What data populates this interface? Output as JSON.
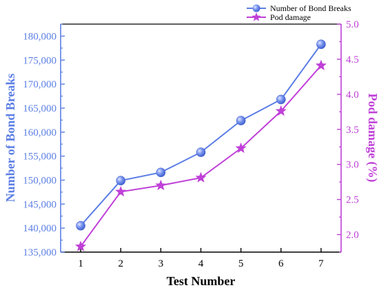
{
  "chart_data": {
    "type": "line",
    "title": "",
    "xlabel": "Test Number",
    "ylabel_left": "Number of Bond Breaks",
    "ylabel_right": "Pod damage (%)",
    "x": [
      1,
      2,
      3,
      4,
      5,
      6,
      7
    ],
    "x_ticks": [
      "1",
      "2",
      "3",
      "4",
      "5",
      "6",
      "7"
    ],
    "y_left_ticks": [
      "135,000",
      "140,000",
      "145,000",
      "150,000",
      "155,000",
      "160,000",
      "165,000",
      "170,000",
      "175,000",
      "180,000"
    ],
    "y_right_ticks": [
      "2.0",
      "2.5",
      "3.0",
      "3.5",
      "4.0",
      "4.5",
      "5.0"
    ],
    "ylim_left": [
      135000,
      182500
    ],
    "ylim_right": [
      1.75,
      5.0
    ],
    "legend_position": "top-right",
    "grid": false,
    "series": [
      {
        "name": "Number of Bond Breaks",
        "axis": "left",
        "marker": "sphere",
        "color": "#5b7ee5",
        "values": [
          140500,
          149900,
          151600,
          155800,
          162400,
          166800,
          178300
        ]
      },
      {
        "name": "Pod damage",
        "axis": "right",
        "marker": "star",
        "color": "#c040d8",
        "values": [
          1.83,
          2.61,
          2.7,
          2.81,
          3.23,
          3.76,
          4.41
        ]
      }
    ]
  }
}
